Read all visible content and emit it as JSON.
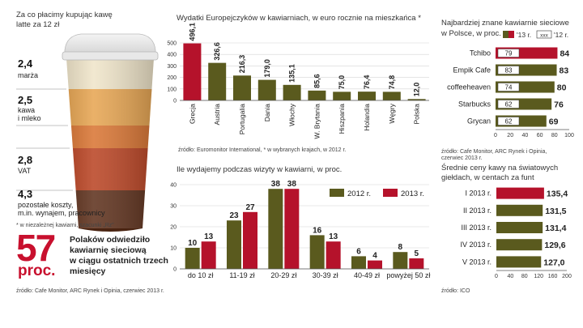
{
  "cup": {
    "title_line1": "Za co płacimy kupując kawę",
    "title_line2": "latte za 12 zł",
    "parts": [
      {
        "value": "2,4",
        "label_lines": [
          "marża"
        ]
      },
      {
        "value": "2,5",
        "label_lines": [
          "kawa",
          "i mleko"
        ]
      },
      {
        "value": "2,8",
        "label_lines": [
          "VAT"
        ]
      },
      {
        "value": "4,3",
        "label_lines": [
          "pozostałe koszty,",
          "m.in. wynajem, pracownicy"
        ]
      }
    ],
    "footnote": "* w niezależnej kawiarni, szacunki „Rz”"
  },
  "stat": {
    "number": "57",
    "unit": "proc.",
    "lines": [
      "Polaków odwiedziło",
      "kawiarnię sieciową",
      "w ciągu ostatnich trzech",
      "miesięcy"
    ]
  },
  "source_bottom_left": "źródło: Cafe Monitor, ARC Rynek i Opinia, czerwiec 2013 r.",
  "chart_data": [
    {
      "id": "spending",
      "type": "bar",
      "title": "Wydatki Europejczyków w kawiarniach, w euro rocznie na mieszkańca *",
      "categories": [
        "Grecja",
        "Austria",
        "Portugalia",
        "Dania",
        "Włochy",
        "W. Brytania",
        "Hiszpania",
        "Holandia",
        "Węgry",
        "Polska"
      ],
      "values": [
        496.1,
        326.6,
        216.3,
        179.0,
        135.1,
        85.6,
        75.0,
        76.4,
        74.8,
        12.0
      ],
      "value_labels": [
        "496,1",
        "326,6",
        "216,3",
        "179,0",
        "135,1",
        "85,6",
        "75,0",
        "76,4",
        "74,8",
        "12,0"
      ],
      "highlight_index": 0,
      "yticks": [
        0,
        100,
        200,
        300,
        400,
        500
      ],
      "ytick_labels": [
        "0",
        "100",
        "200",
        "300",
        "400",
        "500"
      ],
      "ylim": [
        0,
        500
      ],
      "colors": {
        "bar": "#5a5a1e",
        "highlight": "#b5122b"
      },
      "source": "źródło: Euromonitor International, * w wybranych krajach, w 2012 r."
    },
    {
      "id": "visit_spend",
      "type": "bar",
      "title": "Ile wydajemy podczas wizyty w kawiarni, w proc.",
      "categories": [
        "do 10 zł",
        "11-19 zł",
        "20-29 zł",
        "30-39 zł",
        "40-49 zł",
        "powyżej 50 zł"
      ],
      "series": [
        {
          "name": "2012 r.",
          "values": [
            10,
            23,
            38,
            16,
            6,
            8
          ],
          "color": "#5a5a1e"
        },
        {
          "name": "2013 r.",
          "values": [
            13,
            27,
            38,
            13,
            4,
            5
          ],
          "color": "#b5122b"
        }
      ],
      "yticks": [
        0,
        10,
        20,
        30,
        40
      ],
      "ytick_labels": [
        "0",
        "10",
        "20",
        "30",
        "40"
      ],
      "ylim": [
        0,
        40
      ],
      "legend": "top-right"
    },
    {
      "id": "brands",
      "type": "bar",
      "orientation": "horizontal",
      "title_line1": "Najbardziej znane kawiarnie sieciowe",
      "title_line2": "w Polsce, w proc.",
      "legend_2013": "'13 r.",
      "legend_2012": "'12 r.",
      "legend_2012_box": "xxx",
      "categories": [
        "Tchibo",
        "Empik Cafe",
        "coffeeheaven",
        "Starbucks",
        "Grycan"
      ],
      "series": [
        {
          "name": "'13 r.",
          "values": [
            84,
            83,
            80,
            76,
            69
          ]
        },
        {
          "name": "'12 r.",
          "values": [
            79,
            83,
            74,
            62,
            62
          ]
        }
      ],
      "xticks": [
        0,
        20,
        40,
        60,
        80,
        100
      ],
      "xtick_labels": [
        "0",
        "20",
        "40",
        "60",
        "80",
        "100"
      ],
      "xlim": [
        0,
        100
      ],
      "colors": {
        "bar": "#5a5a1e",
        "highlight": "#b5122b"
      },
      "source_lines": [
        "źródło: Cafe Monitor, ARC Rynek i Opinia,",
        "czerwiec 2013 r."
      ]
    },
    {
      "id": "prices",
      "type": "bar",
      "orientation": "horizontal",
      "title_line1": "Średnie ceny kawy na światowych",
      "title_line2": "giełdach, w centach za funt",
      "categories": [
        "I 2013 r.",
        "II 2013 r.",
        "III 2013 r.",
        "IV 2013 r.",
        "V 2013 r."
      ],
      "values": [
        135.4,
        131.5,
        131.4,
        129.6,
        127.0
      ],
      "value_labels": [
        "135,4",
        "131,5",
        "131,4",
        "129,6",
        "127,0"
      ],
      "highlight_index": 0,
      "xticks": [
        0,
        40,
        80,
        120,
        160,
        200
      ],
      "xtick_labels": [
        "0",
        "40",
        "80",
        "120",
        "160",
        "200"
      ],
      "xlim": [
        0,
        200
      ],
      "colors": {
        "bar": "#5a5a1e",
        "highlight": "#b5122b"
      },
      "source": "źródło: ICO"
    }
  ]
}
